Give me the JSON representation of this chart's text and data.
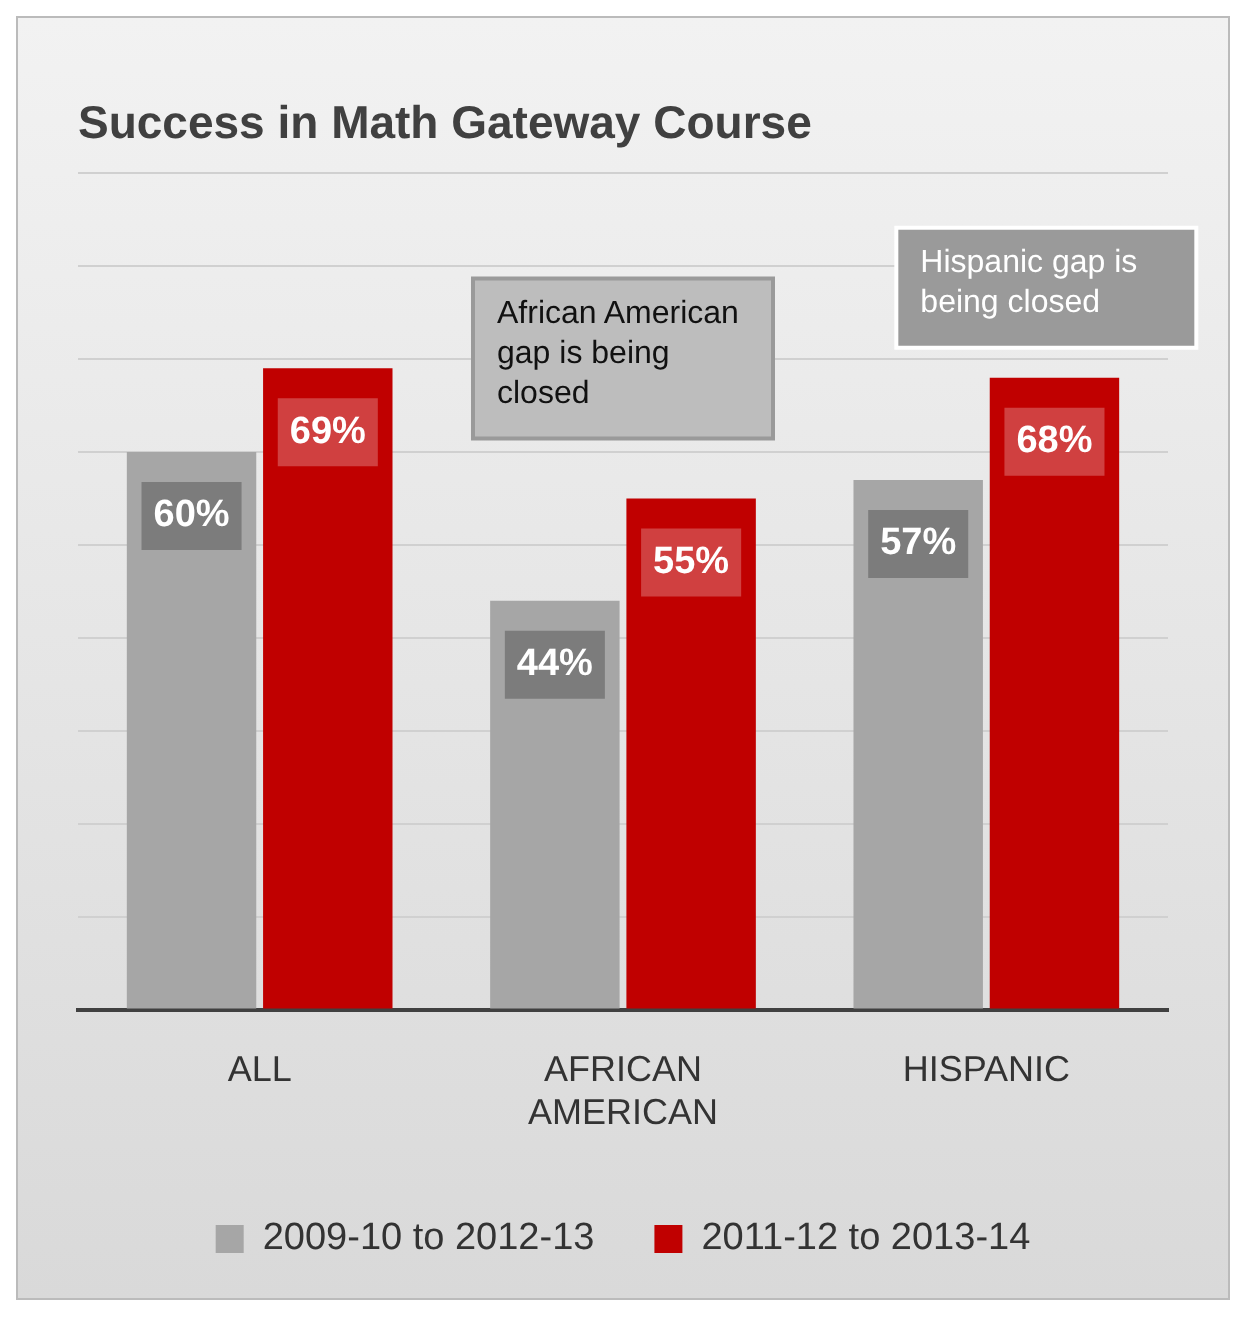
{
  "chart_data": {
    "type": "bar",
    "title": "Success in Math Gateway Course",
    "categories": [
      "ALL",
      "AFRICAN AMERICAN",
      "HISPANIC"
    ],
    "series": [
      {
        "name": "2009-10 to 2012-13",
        "color": "#a6a6a6",
        "values": [
          60,
          44,
          57
        ],
        "value_labels": [
          "60%",
          "44%",
          "57%"
        ]
      },
      {
        "name": "2011-12 to 2013-14",
        "color": "#c00000",
        "values": [
          69,
          55,
          68
        ],
        "value_labels": [
          "69%",
          "55%",
          "68%"
        ]
      }
    ],
    "grid": "y",
    "legend": "bottom",
    "annotations": [
      "African American gap is being closed",
      "Hispanic gap is being closed"
    ]
  }
}
